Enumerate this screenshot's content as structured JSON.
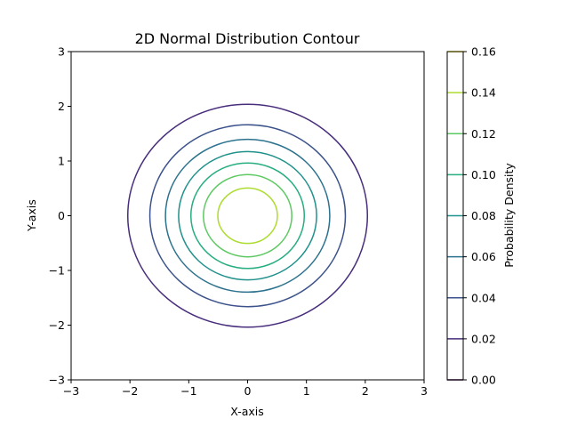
{
  "chart_data": {
    "type": "contour",
    "title": "2D Normal Distribution Contour",
    "xlabel": "X-axis",
    "ylabel": "Y-axis",
    "xlim": [
      -3,
      3
    ],
    "ylim": [
      -3,
      3
    ],
    "x_ticks": [
      -3,
      -2,
      -1,
      0,
      1,
      2,
      3
    ],
    "y_ticks": [
      -3,
      -2,
      -1,
      0,
      1,
      2,
      3
    ],
    "x_tick_labels": [
      "−3",
      "−2",
      "−1",
      "0",
      "1",
      "2",
      "3"
    ],
    "y_tick_labels": [
      "−3",
      "−2",
      "−1",
      "0",
      "1",
      "2",
      "3"
    ],
    "distribution": {
      "mean": [
        0,
        0
      ],
      "sigma": 1
    },
    "contour_levels": [
      {
        "level": 0.02,
        "color": "#472d7b"
      },
      {
        "level": 0.04,
        "color": "#3b528b"
      },
      {
        "level": 0.06,
        "color": "#2c728e"
      },
      {
        "level": 0.08,
        "color": "#21918c"
      },
      {
        "level": 0.1,
        "color": "#28ae80"
      },
      {
        "level": 0.12,
        "color": "#5ec962"
      },
      {
        "level": 0.14,
        "color": "#addc30"
      }
    ],
    "colorbar": {
      "label": "Probability Density",
      "range": [
        0,
        0.16
      ],
      "ticks": [
        {
          "value": 0.0,
          "label": "0.00",
          "color": "#440154"
        },
        {
          "value": 0.02,
          "label": "0.02",
          "color": "#472d7b"
        },
        {
          "value": 0.04,
          "label": "0.04",
          "color": "#3b528b"
        },
        {
          "value": 0.06,
          "label": "0.06",
          "color": "#2c728e"
        },
        {
          "value": 0.08,
          "label": "0.08",
          "color": "#21918c"
        },
        {
          "value": 0.1,
          "label": "0.10",
          "color": "#28ae80"
        },
        {
          "value": 0.12,
          "label": "0.12",
          "color": "#5ec962"
        },
        {
          "value": 0.14,
          "label": "0.14",
          "color": "#addc30"
        },
        {
          "value": 0.16,
          "label": "0.16",
          "color": "#fde725"
        }
      ]
    },
    "grid": false
  }
}
